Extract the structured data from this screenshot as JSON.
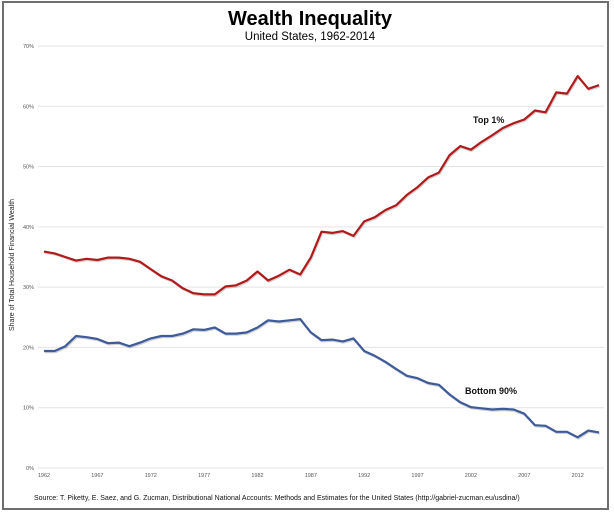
{
  "chart_data": {
    "type": "line",
    "title": "Wealth Inequality",
    "subtitle": "United States, 1962-2014",
    "xlabel": "",
    "ylabel": "Share of Total Household Financial Wealth",
    "ylim": [
      0,
      70
    ],
    "xlim": [
      1962,
      2014
    ],
    "grid": true,
    "y_ticks": [
      0,
      10,
      20,
      30,
      40,
      50,
      60,
      70
    ],
    "y_tick_labels": [
      "0%",
      "10%",
      "20%",
      "30%",
      "40%",
      "50%",
      "60%",
      "70%"
    ],
    "x_ticks": [
      1962,
      1967,
      1972,
      1977,
      1982,
      1987,
      1992,
      1997,
      2002,
      2007,
      2012
    ],
    "x_tick_labels": [
      "1962",
      "1967",
      "1972",
      "1977",
      "1982",
      "1987",
      "1992",
      "1997",
      "2002",
      "2007",
      "2012"
    ],
    "x": [
      1962,
      1963,
      1964,
      1965,
      1966,
      1967,
      1968,
      1969,
      1970,
      1971,
      1972,
      1973,
      1974,
      1975,
      1976,
      1977,
      1978,
      1979,
      1980,
      1981,
      1982,
      1983,
      1984,
      1985,
      1986,
      1987,
      1988,
      1989,
      1990,
      1991,
      1992,
      1993,
      1994,
      1995,
      1996,
      1997,
      1998,
      1999,
      2000,
      2001,
      2002,
      2003,
      2004,
      2005,
      2006,
      2007,
      2008,
      2009,
      2010,
      2011,
      2012,
      2013,
      2014
    ],
    "series": [
      {
        "name": "Top 1%",
        "label": "Top 1%",
        "color": "#b01a1a",
        "values": [
          35.9,
          35.6,
          35.0,
          34.4,
          34.7,
          34.5,
          34.9,
          34.9,
          34.7,
          34.2,
          33.0,
          31.8,
          31.1,
          29.8,
          29.0,
          28.8,
          28.8,
          30.1,
          30.3,
          31.1,
          32.6,
          31.1,
          31.9,
          32.9,
          32.1,
          34.9,
          39.2,
          39.0,
          39.3,
          38.5,
          40.9,
          41.6,
          42.8,
          43.6,
          45.3,
          46.6,
          48.2,
          49.0,
          51.9,
          53.4,
          52.8,
          54.1,
          55.2,
          56.4,
          57.2,
          57.8,
          59.3,
          59.0,
          62.3,
          62.1,
          65.0,
          62.9,
          63.5
        ]
      },
      {
        "name": "Bottom 90%",
        "label": "Bottom 90%",
        "color": "#3d5a99",
        "values": [
          19.4,
          19.4,
          20.2,
          21.9,
          21.7,
          21.4,
          20.7,
          20.8,
          20.2,
          20.8,
          21.5,
          21.9,
          21.9,
          22.3,
          23.0,
          22.9,
          23.3,
          22.3,
          22.3,
          22.5,
          23.3,
          24.5,
          24.3,
          24.5,
          24.7,
          22.5,
          21.2,
          21.3,
          21.0,
          21.5,
          19.4,
          18.6,
          17.6,
          16.4,
          15.3,
          14.9,
          14.1,
          13.8,
          12.2,
          10.9,
          10.1,
          9.9,
          9.7,
          9.8,
          9.7,
          9.0,
          7.1,
          7.0,
          6.0,
          6.0,
          5.1,
          6.2,
          5.9
        ]
      }
    ],
    "source": "Source: T. Piketty, E. Saez, and G. Zucman,  Distributional National Accounts: Methods and Estimates for the United States (http://gabriel-zucman.eu/usdina/)"
  }
}
